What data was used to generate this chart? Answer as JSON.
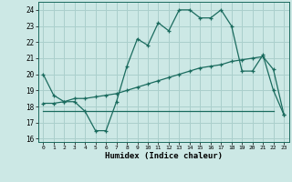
{
  "xlabel": "Humidex (Indice chaleur)",
  "bg_color": "#cce8e5",
  "grid_color": "#aacfcc",
  "line_color": "#1a6b5e",
  "xlim": [
    -0.5,
    23.5
  ],
  "ylim": [
    15.8,
    24.5
  ],
  "yticks": [
    16,
    17,
    18,
    19,
    20,
    21,
    22,
    23,
    24
  ],
  "xticks": [
    0,
    1,
    2,
    3,
    4,
    5,
    6,
    7,
    8,
    9,
    10,
    11,
    12,
    13,
    14,
    15,
    16,
    17,
    18,
    19,
    20,
    21,
    22,
    23
  ],
  "line1_x": [
    0,
    1,
    2,
    3,
    4,
    5,
    6,
    7,
    8,
    9,
    10,
    11,
    12,
    13,
    14,
    15,
    16,
    17,
    18,
    19,
    20,
    21,
    22,
    23
  ],
  "line1_y": [
    20.0,
    18.7,
    18.3,
    18.3,
    17.7,
    16.5,
    16.5,
    18.3,
    20.5,
    22.2,
    21.8,
    23.2,
    22.7,
    24.0,
    24.0,
    23.5,
    23.5,
    24.0,
    23.0,
    20.2,
    20.2,
    21.2,
    19.0,
    17.5
  ],
  "line2_x": [
    0,
    1,
    2,
    3,
    4,
    5,
    6,
    7,
    8,
    9,
    10,
    11,
    12,
    13,
    14,
    15,
    16,
    17,
    18,
    19,
    20,
    21,
    22,
    23
  ],
  "line2_y": [
    18.2,
    18.2,
    18.3,
    18.5,
    18.5,
    18.6,
    18.7,
    18.8,
    19.0,
    19.2,
    19.4,
    19.6,
    19.8,
    20.0,
    20.2,
    20.4,
    20.5,
    20.6,
    20.8,
    20.9,
    21.0,
    21.1,
    20.3,
    17.5
  ],
  "line3_x": [
    0,
    22
  ],
  "line3_y": [
    17.7,
    17.7
  ]
}
